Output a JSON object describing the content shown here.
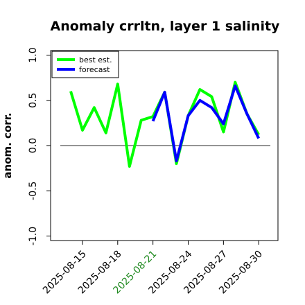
{
  "chart_data": {
    "type": "line",
    "title": "Anomaly crrltn, layer 1 salinity",
    "xlabel": "",
    "ylabel": "anom. corr.",
    "ylim": [
      -1.05,
      1.05
    ],
    "yticks": [
      "1.0",
      "0.5",
      "0.0",
      "-0.5",
      "-1.0"
    ],
    "ytick_values": [
      1.0,
      0.5,
      0.0,
      -0.5,
      -1.0
    ],
    "x_dates": [
      "2025-08-14",
      "2025-08-15",
      "2025-08-16",
      "2025-08-17",
      "2025-08-18",
      "2025-08-19",
      "2025-08-20",
      "2025-08-21",
      "2025-08-22",
      "2025-08-23",
      "2025-08-24",
      "2025-08-25",
      "2025-08-26",
      "2025-08-27",
      "2025-08-28",
      "2025-08-29",
      "2025-08-30"
    ],
    "xticks": [
      {
        "label": "2025-08-15",
        "color": "#000000"
      },
      {
        "label": "2025-08-18",
        "color": "#000000"
      },
      {
        "label": "2025-08-21",
        "color": "#228b22"
      },
      {
        "label": "2025-08-24",
        "color": "#000000"
      },
      {
        "label": "2025-08-27",
        "color": "#000000"
      },
      {
        "label": "2025-08-30",
        "color": "#000000"
      }
    ],
    "zero_line": 0.0,
    "grid": false,
    "legend_position": "top-left",
    "series": [
      {
        "name": "best est.",
        "color": "#00ff00",
        "x": [
          "2025-08-14",
          "2025-08-15",
          "2025-08-16",
          "2025-08-17",
          "2025-08-18",
          "2025-08-19",
          "2025-08-20",
          "2025-08-21",
          "2025-08-22",
          "2025-08-23",
          "2025-08-24",
          "2025-08-25",
          "2025-08-26",
          "2025-08-27",
          "2025-08-28",
          "2025-08-29",
          "2025-08-30"
        ],
        "values": [
          0.6,
          0.17,
          0.42,
          0.14,
          0.68,
          -0.23,
          0.28,
          0.32,
          0.59,
          -0.2,
          0.33,
          0.62,
          0.54,
          0.15,
          0.7,
          0.35,
          0.12
        ]
      },
      {
        "name": "forecast",
        "color": "#0000ff",
        "x": [
          "2025-08-21",
          "2025-08-22",
          "2025-08-23",
          "2025-08-24",
          "2025-08-25",
          "2025-08-26",
          "2025-08-27",
          "2025-08-28",
          "2025-08-29",
          "2025-08-30"
        ],
        "values": [
          0.27,
          0.59,
          -0.17,
          0.33,
          0.5,
          0.42,
          0.24,
          0.66,
          0.35,
          0.08
        ]
      }
    ]
  }
}
